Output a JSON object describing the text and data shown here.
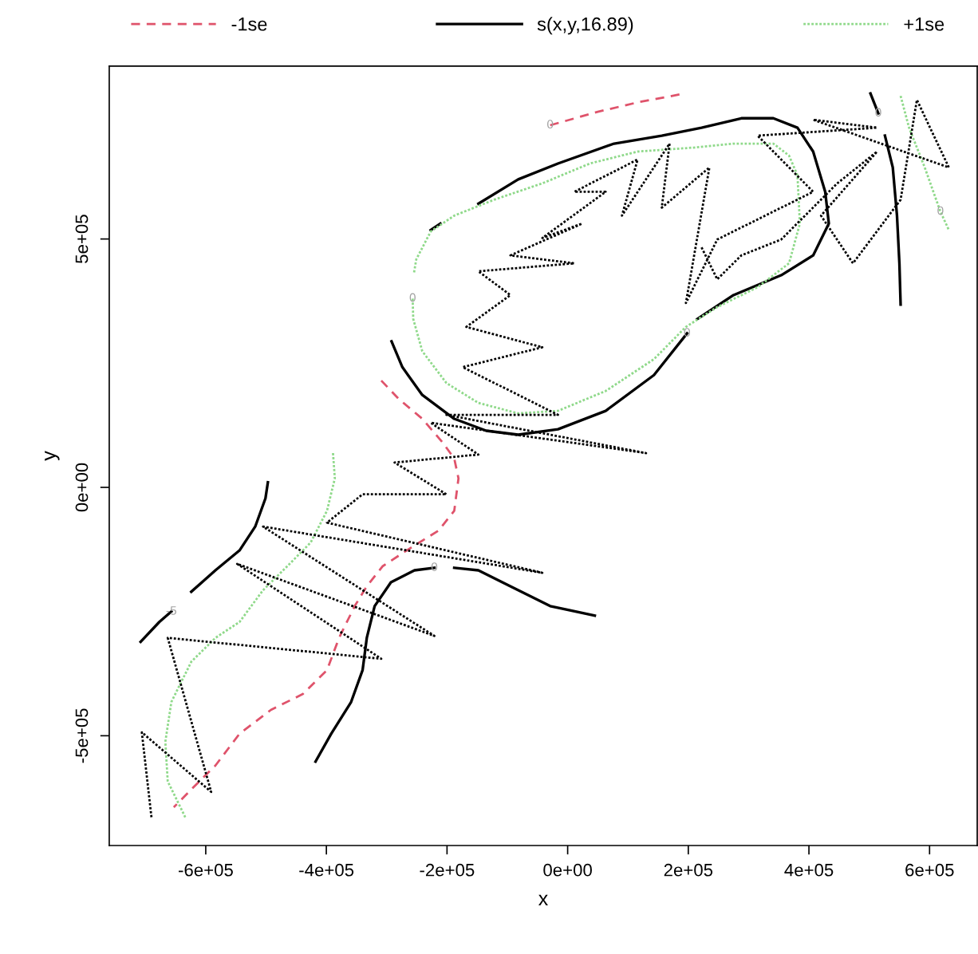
{
  "chart_data": {
    "type": "line",
    "xlabel": "x",
    "ylabel": "y",
    "legend": "top",
    "grid": false,
    "marker": "none",
    "xlim": [
      -760000,
      679000
    ],
    "ylim": [
      -721000,
      848000
    ],
    "xticks": [
      {
        "value": -600000,
        "label": "-6e+05"
      },
      {
        "value": -400000,
        "label": "-4e+05"
      },
      {
        "value": -200000,
        "label": "-2e+05"
      },
      {
        "value": 0,
        "label": "0e+00"
      },
      {
        "value": 200000,
        "label": "2e+05"
      },
      {
        "value": 400000,
        "label": "4e+05"
      },
      {
        "value": 600000,
        "label": "6e+05"
      }
    ],
    "yticks": [
      {
        "value": -500000,
        "label": "-5e+05"
      },
      {
        "value": 0,
        "label": "0e+00"
      },
      {
        "value": 500000,
        "label": "5e+05"
      }
    ],
    "series": [
      {
        "name": "-1se",
        "color": "#df536b",
        "line_style": "dashed",
        "x": [
          -29000,
          50000,
          116000,
          186000
        ],
        "values": [
          729000,
          756000,
          775000,
          791000
        ]
      },
      {
        "color": "#df536b",
        "line_style": "dashed",
        "x": [
          -309000,
          -280000,
          -241000,
          -207000,
          -188000,
          -181000,
          -188000,
          -214000,
          -267000,
          -307000,
          -333000,
          -353000,
          -379000,
          -399000,
          -439000,
          -492000,
          -544000,
          -584000,
          -624000,
          -653000
        ],
        "values": [
          215000,
          178000,
          138000,
          90000,
          58000,
          18000,
          -47000,
          -87000,
          -127000,
          -159000,
          -199000,
          -239000,
          -303000,
          -368000,
          -416000,
          -448000,
          -496000,
          -560000,
          -608000,
          -644000
        ]
      },
      {
        "name": "s(x,y,16.89)",
        "color": "#000000",
        "line_style": "solid",
        "x": [
          -292000,
          -274000,
          -241000,
          -188000,
          -135000,
          -82000,
          -16000,
          63000,
          143000,
          198000
        ],
        "values": [
          294000,
          242000,
          186000,
          138000,
          114000,
          106000,
          117000,
          154000,
          226000,
          310000
        ]
      },
      {
        "color": "#000000",
        "line_style": "solid",
        "x": [
          215000,
          275000,
          354000,
          407000,
          433000,
          427000,
          407000,
          381000,
          341000,
          288000,
          222000,
          156000,
          77000,
          -16000,
          -82000,
          -148000
        ],
        "values": [
          339000,
          387000,
          427000,
          467000,
          531000,
          595000,
          676000,
          724000,
          743000,
          743000,
          724000,
          708000,
          692000,
          652000,
          620000,
          571000
        ]
      },
      {
        "color": "#000000",
        "line_style": "solid",
        "x": [
          -227000,
          -211000
        ],
        "values": [
          518000,
          531000
        ]
      },
      {
        "color": "#000000",
        "line_style": "solid",
        "x": [
          502000,
          515000
        ],
        "values": [
          793000,
          753000
        ]
      },
      {
        "color": "#000000",
        "line_style": "solid",
        "x": [
          526000,
          539000,
          546000,
          550000,
          552000
        ],
        "values": [
          708000,
          644000,
          547000,
          451000,
          368000
        ]
      },
      {
        "color": "#000000",
        "line_style": "solid",
        "x": [
          -708000,
          -677000,
          -657000
        ],
        "values": [
          -311000,
          -271000,
          -250000
        ]
      },
      {
        "color": "#000000",
        "line_style": "solid",
        "x": [
          -624000,
          -584000,
          -544000,
          -518000,
          -501000,
          -497000
        ],
        "values": [
          -210000,
          -167000,
          -127000,
          -79000,
          -22000,
          10000
        ]
      },
      {
        "color": "#000000",
        "line_style": "solid",
        "x": [
          -418000,
          -392000,
          -359000,
          -340000,
          -333000,
          -320000,
          -293000,
          -254000,
          -221000
        ],
        "values": [
          -552000,
          -496000,
          -432000,
          -368000,
          -303000,
          -239000,
          -191000,
          -167000,
          -162000
        ]
      },
      {
        "color": "#000000",
        "line_style": "solid",
        "x": [
          -188000,
          -148000,
          -95000,
          -29000,
          45000
        ],
        "values": [
          -162000,
          -167000,
          -199000,
          -239000,
          -258000
        ]
      },
      {
        "name": "+1se",
        "color": "#8fd98a",
        "line_style": "dotted",
        "x": [
          -257000,
          -256000,
          -241000,
          -201000,
          -148000,
          -82000,
          -16000,
          63000,
          143000,
          196000,
          248000,
          315000,
          367000,
          385000,
          381000,
          367000,
          341000,
          275000,
          209000,
          116000,
          37000,
          -42000,
          -122000,
          -188000,
          -227000,
          -251000,
          -255000
        ],
        "values": [
          380000,
          339000,
          274000,
          210000,
          170000,
          149000,
          154000,
          194000,
          258000,
          323000,
          363000,
          403000,
          451000,
          531000,
          628000,
          668000,
          692000,
          692000,
          684000,
          676000,
          652000,
          612000,
          579000,
          547000,
          515000,
          459000,
          430000
        ]
      },
      {
        "color": "#8fd98a",
        "line_style": "dotted",
        "x": [
          -389000,
          -386000,
          -399000,
          -426000,
          -465000,
          -505000,
          -544000,
          -584000,
          -624000,
          -657000,
          -667000,
          -663000,
          -634000
        ],
        "values": [
          69000,
          18000,
          -47000,
          -111000,
          -159000,
          -207000,
          -271000,
          -303000,
          -351000,
          -432000,
          -512000,
          -592000,
          -664000
        ]
      },
      {
        "color": "#8fd98a",
        "line_style": "dotted",
        "x": [
          552000,
          566000,
          592000,
          618000,
          632000
        ],
        "values": [
          788000,
          724000,
          644000,
          555000,
          518000
        ]
      },
      {
        "color": "#000000",
        "line_style": "dotted",
        "x": [
          -690000,
          -706000,
          -591000,
          -663000,
          -309000,
          -548000,
          -221000,
          -505000,
          -42000,
          -399000,
          -340000,
          -201000,
          -287000,
          -148000,
          -227000,
          130000,
          -201000,
          -16000,
          -174000,
          -42000,
          -168000,
          -95000,
          -148000,
          11000,
          -95000,
          24000,
          -42000,
          63000,
          11000,
          116000,
          90000,
          169000,
          156000,
          235000,
          196000,
          248000,
          407000,
          315000,
          513000,
          407000,
          632000,
          579000,
          552000,
          473000,
          420000,
          513000,
          447000,
          354000,
          288000,
          248000,
          222000
        ],
        "values": [
          -664000,
          -493000,
          -613000,
          -303000,
          -345000,
          -154000,
          -299000,
          -79000,
          -172000,
          -71000,
          -14000,
          -14000,
          50000,
          66000,
          130000,
          69000,
          146000,
          146000,
          242000,
          282000,
          323000,
          387000,
          435000,
          451000,
          467000,
          531000,
          502000,
          595000,
          595000,
          660000,
          547000,
          692000,
          563000,
          644000,
          371000,
          499000,
          595000,
          708000,
          724000,
          740000,
          644000,
          780000,
          579000,
          451000,
          547000,
          676000,
          612000,
          499000,
          467000,
          419000,
          483000
        ]
      }
    ],
    "annotations": [
      {
        "text": "0",
        "x": 198000,
        "y": 310000
      },
      {
        "text": "0",
        "x": -221000,
        "y": -162000
      },
      {
        "text": "-5",
        "x": -657000,
        "y": -250000
      },
      {
        "text": "0",
        "x": 515000,
        "y": 753000
      },
      {
        "text": "0",
        "x": -257000,
        "y": 380000
      },
      {
        "text": "0",
        "x": 618000,
        "y": 555000
      },
      {
        "text": "0",
        "x": -29000,
        "y": 729000
      }
    ]
  }
}
